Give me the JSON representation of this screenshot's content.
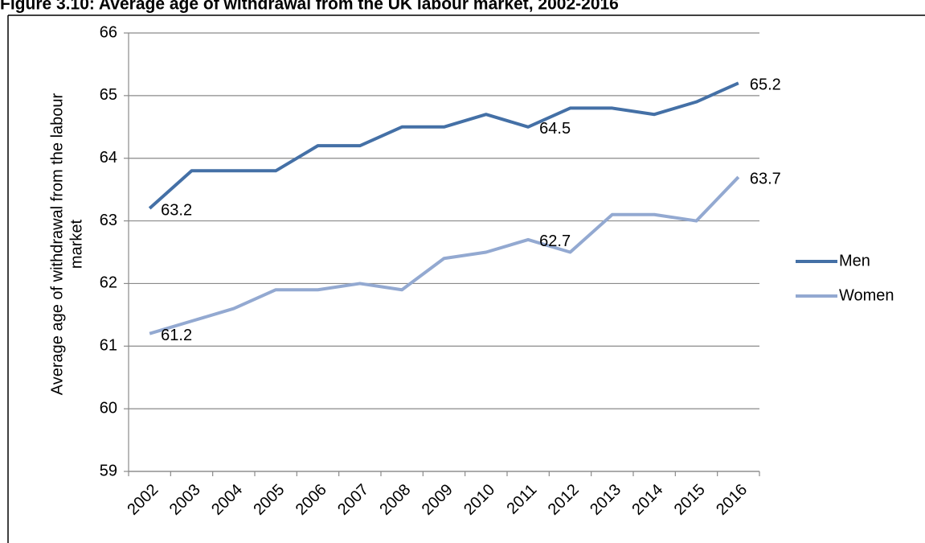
{
  "chart_data": {
    "type": "line",
    "title": "Figure 3.10: Average age of withdrawal from the UK labour market, 2002-2016",
    "y_label": [
      "Average age of withdrawal from the labour",
      "market"
    ],
    "categories": [
      "2002",
      "2003",
      "2004",
      "2005",
      "2006",
      "2007",
      "2008",
      "2009",
      "2010",
      "2011",
      "2012",
      "2013",
      "2014",
      "2015",
      "2016"
    ],
    "series": [
      {
        "name": "Men",
        "color": "#4470a6",
        "values": [
          63.2,
          63.8,
          63.8,
          63.8,
          64.2,
          64.2,
          64.5,
          64.5,
          64.7,
          64.5,
          64.8,
          64.8,
          64.7,
          64.9,
          65.2
        ],
        "value_labels": [
          "63.2",
          null,
          null,
          null,
          null,
          null,
          null,
          null,
          null,
          "64.5",
          null,
          null,
          null,
          null,
          "65.2"
        ]
      },
      {
        "name": "Women",
        "color": "#93a9d1",
        "values": [
          61.2,
          61.4,
          61.6,
          61.9,
          61.9,
          62.0,
          61.9,
          62.4,
          62.5,
          62.7,
          62.5,
          63.1,
          63.1,
          63.0,
          63.7
        ],
        "value_labels": [
          "61.2",
          null,
          null,
          null,
          null,
          null,
          null,
          null,
          null,
          "62.7",
          null,
          null,
          null,
          null,
          "63.7"
        ]
      }
    ],
    "ylim": [
      59,
      66
    ],
    "yticks": [
      59,
      60,
      61,
      62,
      63,
      64,
      65,
      66
    ],
    "grid": true,
    "legend": "right"
  }
}
